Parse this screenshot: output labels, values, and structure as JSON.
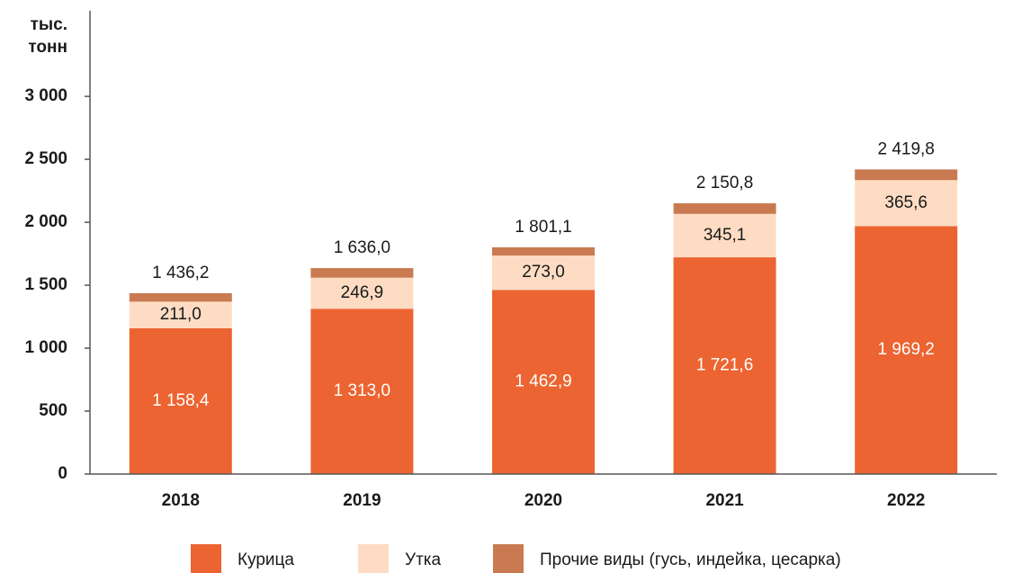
{
  "chart_data": {
    "type": "stacked_bar",
    "ylabel_lines": [
      "тыс.",
      "тонн"
    ],
    "categories": [
      "2018",
      "2019",
      "2020",
      "2021",
      "2022"
    ],
    "series": [
      {
        "name": "Курица",
        "color": "#ec6431",
        "values": [
          1158.4,
          1313.0,
          1462.9,
          1721.6,
          1969.2
        ],
        "value_labels": [
          "1 158,4",
          "1 313,0",
          "1 462,9",
          "1 721,6",
          "1 969,2"
        ]
      },
      {
        "name": "Утка",
        "color": "#fddcc3",
        "values": [
          211.0,
          246.9,
          273.0,
          345.1,
          365.6
        ],
        "value_labels": [
          "211,0",
          "246,9",
          "273,0",
          "345,1",
          "365,6"
        ]
      },
      {
        "name": "Прочие виды (гусь, индейка, цесарка)",
        "color": "#c97a50",
        "values": [
          66.8,
          76.1,
          65.2,
          84.1,
          85.0
        ]
      }
    ],
    "totals": {
      "values": [
        1436.2,
        1636.0,
        1801.1,
        2150.8,
        2419.8
      ],
      "value_labels": [
        "1 436,2",
        "1 636,0",
        "1 801,1",
        "2 150,8",
        "2 419,8"
      ]
    },
    "ylim": [
      0,
      3680
    ],
    "yticks": [
      0,
      500,
      {
        "value": 1000,
        "label": "1 000"
      },
      {
        "value": 1500,
        "label": "1 500"
      },
      {
        "value": 2000,
        "label": "2 000"
      },
      {
        "value": 2500,
        "label": "2 500"
      },
      {
        "value": 3000,
        "label": "3 000"
      }
    ],
    "grid": true
  }
}
